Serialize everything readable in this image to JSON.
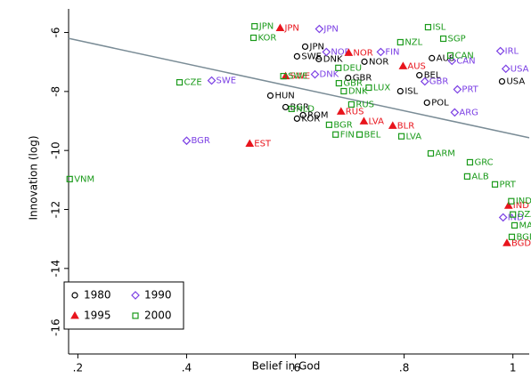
{
  "chart_data": {
    "type": "scatter",
    "x_label": "Belief in God",
    "y_label": "Innovation (log)",
    "xlim": [
      0.183,
      1.03
    ],
    "ylim": [
      -16.9,
      -5.2
    ],
    "xticks": [
      {
        "value": 0.2,
        "label": ".2"
      },
      {
        "value": 0.4,
        "label": ".4"
      },
      {
        "value": 0.6,
        "label": ".6"
      },
      {
        "value": 0.8,
        "label": ".8"
      },
      1
    ],
    "yticks": [
      -6,
      -8,
      -10,
      -12,
      -14,
      -16
    ],
    "legend": "bottom-left",
    "fit_line": {
      "color": "#7a8c96",
      "x": [
        0.183,
        1.03
      ],
      "values": [
        -6.2,
        -9.57
      ]
    },
    "series": [
      {
        "name": "1980",
        "color": "#000000",
        "marker": "circle",
        "x": [
          0.618,
          0.603,
          0.643,
          0.727,
          0.554,
          0.582,
          0.603,
          0.614,
          0.828,
          0.851,
          0.793,
          0.842,
          0.98,
          0.697
        ],
        "values": [
          -6.48,
          -6.81,
          -6.9,
          -6.99,
          -8.14,
          -8.53,
          -8.92,
          -8.8,
          -7.45,
          -6.87,
          -7.99,
          -8.38,
          -7.66,
          -7.54
        ],
        "labels": [
          "JPN",
          "SWE",
          "DNK",
          "NOR",
          "HUN",
          "BGR",
          "KOR",
          "ROM",
          "BEL",
          "AUS",
          "ISL",
          "POL",
          "USA",
          "GBR"
        ]
      },
      {
        "name": "1990",
        "color": "#7b3fe4",
        "marker": "diamond",
        "x": [
          0.644,
          0.657,
          0.446,
          0.4,
          0.757,
          0.636,
          0.888,
          0.977,
          0.987,
          0.838,
          0.898,
          0.893,
          0.982
        ],
        "values": [
          -5.88,
          -6.66,
          -7.63,
          -9.67,
          -6.66,
          -7.42,
          -6.96,
          -6.63,
          -7.23,
          -7.66,
          -7.93,
          -8.71,
          -12.27
        ],
        "labels": [
          "JPN",
          "NOR",
          "SWE",
          "BGR",
          "FIN",
          "DNK",
          "CAN",
          "IRL",
          "USA",
          "GBR",
          "PRT",
          "ARG",
          "IND"
        ]
      },
      {
        "name": "1995",
        "color": "#e8141c",
        "marker": "triangle",
        "x": [
          0.572,
          0.516,
          0.698,
          0.582,
          0.684,
          0.779,
          0.726,
          0.798,
          0.992,
          0.989
        ],
        "values": [
          -5.85,
          -9.77,
          -6.69,
          -7.48,
          -8.68,
          -9.16,
          -9.01,
          -7.14,
          -11.87,
          -13.14
        ],
        "labels": [
          "JPN",
          "EST",
          "NOR",
          "SWE",
          "RUS",
          "BLR",
          "LVA",
          "AUS",
          "IND",
          "BGD"
        ]
      },
      {
        "name": "2000",
        "color": "#1a9a1a",
        "marker": "square",
        "x": [
          0.185,
          0.387,
          0.525,
          0.523,
          0.844,
          0.793,
          0.872,
          0.679,
          0.689,
          0.735,
          0.703,
          0.593,
          0.662,
          0.674,
          0.718,
          0.795,
          0.849,
          0.921,
          0.916,
          0.967,
          0.997,
          1.0,
          1.003,
          0.998,
          0.68,
          0.578,
          0.885
        ],
        "values": [
          -10.97,
          -7.69,
          -5.79,
          -6.18,
          -5.82,
          -6.33,
          -6.21,
          -7.2,
          -7.99,
          -7.87,
          -8.44,
          -8.59,
          -9.13,
          -9.46,
          -9.46,
          -9.52,
          -10.1,
          -10.4,
          -10.88,
          -11.15,
          -11.72,
          -12.17,
          -12.54,
          -12.93,
          -7.72,
          -7.48,
          -6.78
        ],
        "labels": [
          "VNM",
          "CZE",
          "JPN",
          "KOR",
          "ISL",
          "NZL",
          "SGP",
          "DEU",
          "DNK",
          "LUX",
          "RUS",
          "NLD",
          "BGR",
          "FIN",
          "BEL",
          "LVA",
          "ARM",
          "GRC",
          "ALB",
          "PRT",
          "IND",
          "DZA",
          "MAR",
          "BGD",
          "GBR",
          "SWE",
          "CAN"
        ]
      }
    ]
  }
}
